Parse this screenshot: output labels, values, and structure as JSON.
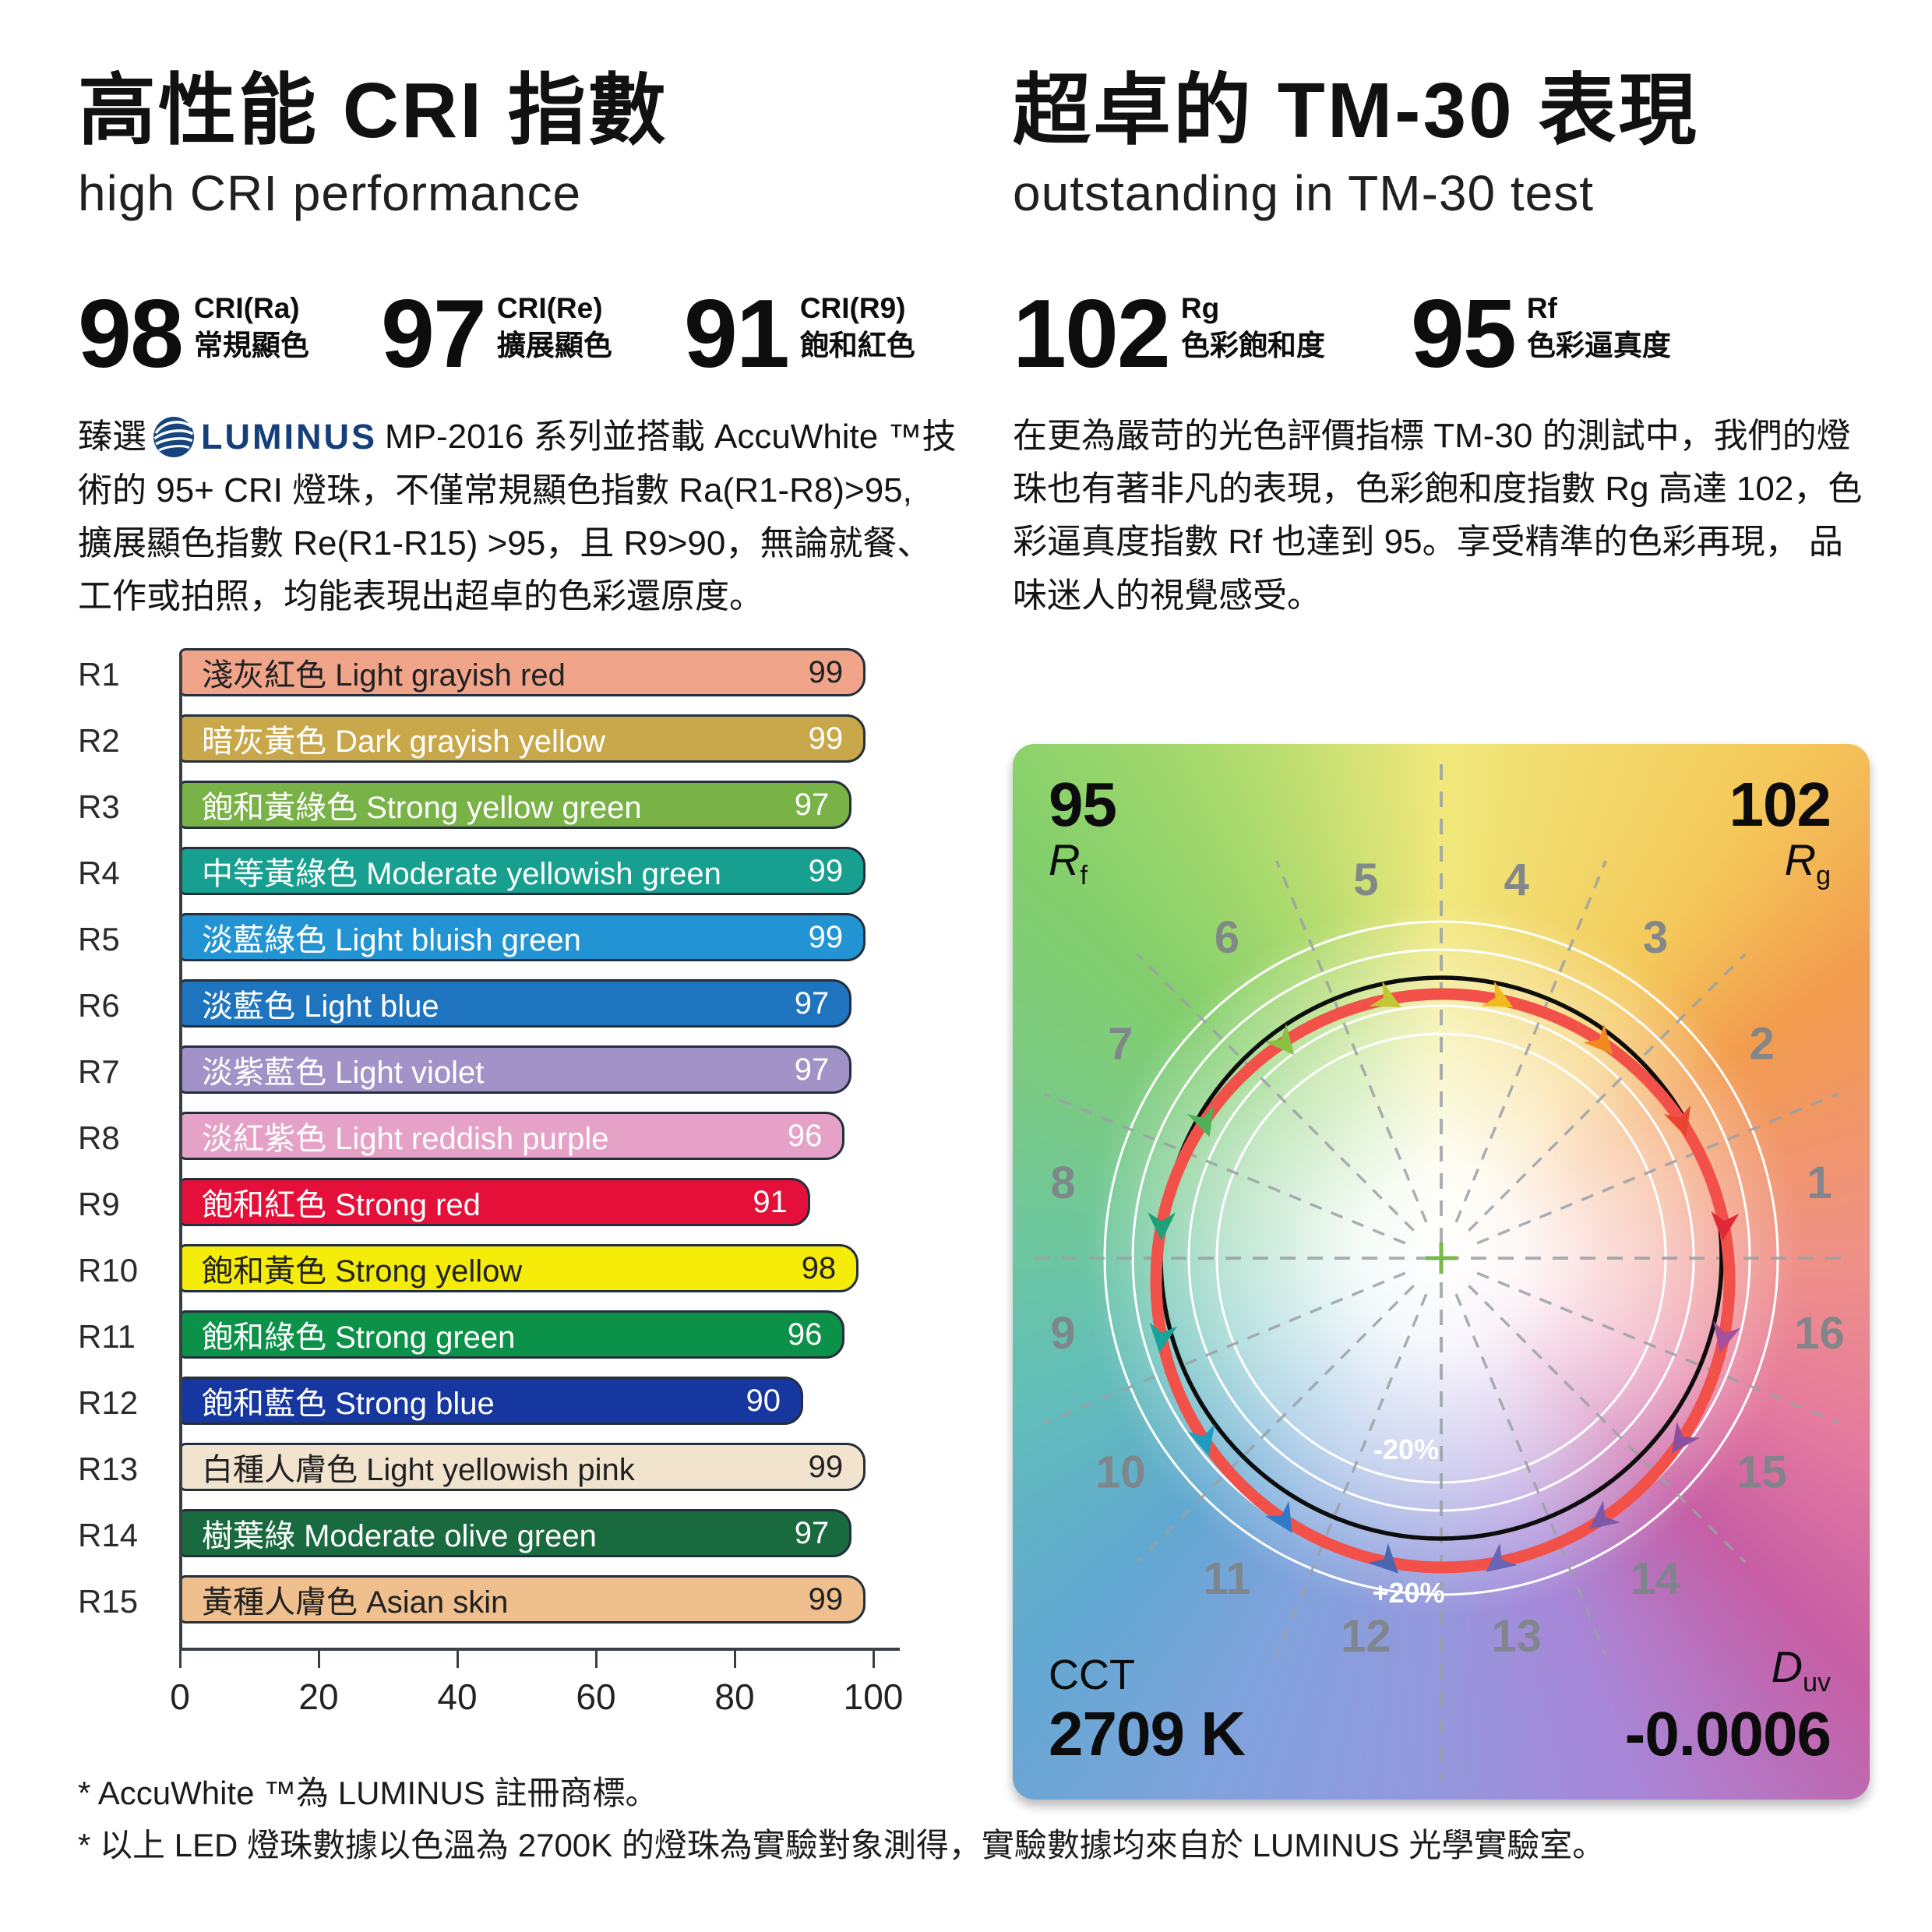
{
  "left": {
    "title_zh": "高性能 CRI 指數",
    "title_en": "high CRI performance",
    "stats": [
      {
        "value": "98",
        "label_top": "CRI(Ra)",
        "label_bottom": "常規顯色"
      },
      {
        "value": "97",
        "label_top": "CRI(Re)",
        "label_bottom": "擴展顯色"
      },
      {
        "value": "91",
        "label_top": "CRI(R9)",
        "label_bottom": "飽和紅色"
      }
    ],
    "paragraph": {
      "line1_pre": "臻選",
      "logo_text": "LUMINUS",
      "line1_post": "MP-2016 系列並搭載 AccuWhite ™技",
      "lines_rest": [
        "術的 95+ CRI 燈珠，不僅常規顯色指數 Ra(R1-R8)>95,",
        "擴展顯色指數 Re(R1-R15) >95，且 R9>90，無論就餐、",
        "工作或拍照，均能表現出超卓的色彩還原度。"
      ]
    }
  },
  "right": {
    "title_zh": "超卓的 TM-30 表現",
    "title_en": "outstanding in TM-30 test",
    "stats": [
      {
        "value": "102",
        "label_top": "Rg",
        "label_bottom": "色彩飽和度"
      },
      {
        "value": "95",
        "label_top": "Rf",
        "label_bottom": "色彩逼真度"
      }
    ],
    "paragraph_lines": [
      "在更為嚴苛的光色評價指標 TM-30 的測試中，我們的燈",
      "珠也有著非凡的表現，色彩飽和度指數 Rg 高達 102，色",
      "彩逼真度指數 Rf 也達到 95。享受精準的色彩再現， 品",
      "味迷人的視覺感受。"
    ]
  },
  "chart_data": [
    {
      "type": "bar",
      "orientation": "horizontal",
      "categories": [
        "R1",
        "R2",
        "R3",
        "R4",
        "R5",
        "R6",
        "R7",
        "R8",
        "R9",
        "R10",
        "R11",
        "R12",
        "R13",
        "R14",
        "R15"
      ],
      "labels": [
        "淺灰紅色 Light grayish red",
        "暗灰黃色 Dark grayish yellow",
        "飽和黃綠色 Strong yellow green",
        "中等黃綠色 Moderate yellowish green",
        "淡藍綠色 Light bluish green",
        "淡藍色 Light blue",
        "淡紫藍色 Light violet",
        "淡紅紫色 Light reddish purple",
        "飽和紅色 Strong red",
        "飽和黃色 Strong yellow",
        "飽和綠色 Strong green",
        "飽和藍色 Strong blue",
        "白種人膚色 Light yellowish pink",
        "樹葉綠 Moderate olive green",
        "黃種人膚色 Asian skin"
      ],
      "values": [
        99,
        99,
        97,
        99,
        99,
        97,
        97,
        96,
        91,
        98,
        96,
        90,
        99,
        97,
        99
      ],
      "bar_colors": [
        "#F0A58B",
        "#C9A84C",
        "#79B247",
        "#17A08F",
        "#2394D3",
        "#1E74BE",
        "#A192C7",
        "#E5A2C6",
        "#E51039",
        "#F6EC0A",
        "#0B9248",
        "#16379F",
        "#F1E3CD",
        "#1A6A40",
        "#EFBF8E"
      ],
      "text_colors": [
        "#222222",
        "#ffffff",
        "#ffffff",
        "#ffffff",
        "#ffffff",
        "#ffffff",
        "#ffffff",
        "#ffffff",
        "#ffffff",
        "#222222",
        "#ffffff",
        "#ffffff",
        "#222222",
        "#ffffff",
        "#222222"
      ],
      "xticks": [
        0,
        20,
        40,
        60,
        80,
        100
      ],
      "xlim": [
        0,
        100
      ],
      "grid": false,
      "outline_color": "#232f3e"
    },
    {
      "type": "tm30-color-vector",
      "rf_value": "95",
      "rf_sym": "R",
      "rf_sub": "f",
      "rg_value": "102",
      "rg_sym": "R",
      "rg_sub": "g",
      "cct_label": "CCT",
      "cct_value": "2709 K",
      "duv_sym": "D",
      "duv_sub": "uv",
      "duv_value": "-0.0006",
      "minus20_label": "-20%",
      "plus20_label": "+20%",
      "reference_circle_color": "#0d0d0d",
      "test_curve_color": "#f15148",
      "ring_color": "#ffffff",
      "dash_color": "#9ba1a6",
      "number_color": "#7f858a",
      "center_cross_color": "#7ab648",
      "ring_radii_pct": [
        80,
        90,
        110,
        120
      ],
      "hue_bins": [
        {
          "n": 1,
          "angle": 11.25,
          "color": "#e02837",
          "rot": 95
        },
        {
          "n": 2,
          "angle": 33.75,
          "color": "#e8442e",
          "rot": 72
        },
        {
          "n": 3,
          "angle": 56.25,
          "color": "#f28a21",
          "rot": 48
        },
        {
          "n": 4,
          "angle": 78.75,
          "color": "#f2bb1d",
          "rot": 28
        },
        {
          "n": 5,
          "angle": 101.25,
          "color": "#c1c832",
          "rot": 28
        },
        {
          "n": 6,
          "angle": 123.75,
          "color": "#8cc043",
          "rot": 50
        },
        {
          "n": 7,
          "angle": 146.25,
          "color": "#4fb05a",
          "rot": 72
        },
        {
          "n": 8,
          "angle": 168.75,
          "color": "#1fa077",
          "rot": 90
        },
        {
          "n": 9,
          "angle": 191.25,
          "color": "#18a49b",
          "rot": 98
        },
        {
          "n": 10,
          "angle": 213.75,
          "color": "#1f9cc0",
          "rot": 75
        },
        {
          "n": 11,
          "angle": 236.25,
          "color": "#3178c6",
          "rot": 58
        },
        {
          "n": 12,
          "angle": 258.75,
          "color": "#4a66b2",
          "rot": 45
        },
        {
          "n": 13,
          "angle": 281.25,
          "color": "#6a64b4",
          "rot": 142
        },
        {
          "n": 14,
          "angle": 303.75,
          "color": "#7d57a8",
          "rot": 142
        },
        {
          "n": 15,
          "angle": 326.25,
          "color": "#8d4fa0",
          "rot": 125
        },
        {
          "n": 16,
          "angle": 348.75,
          "color": "#a64f9b",
          "rot": 104
        }
      ]
    }
  ],
  "footnotes": [
    "* AccuWhite ™為 LUMINUS 註冊商標。",
    "* 以上 LED 燈珠數據以色溫為 2700K 的燈珠為實驗對象測得，實驗數據均來自於 LUMINUS 光學實驗室。"
  ]
}
